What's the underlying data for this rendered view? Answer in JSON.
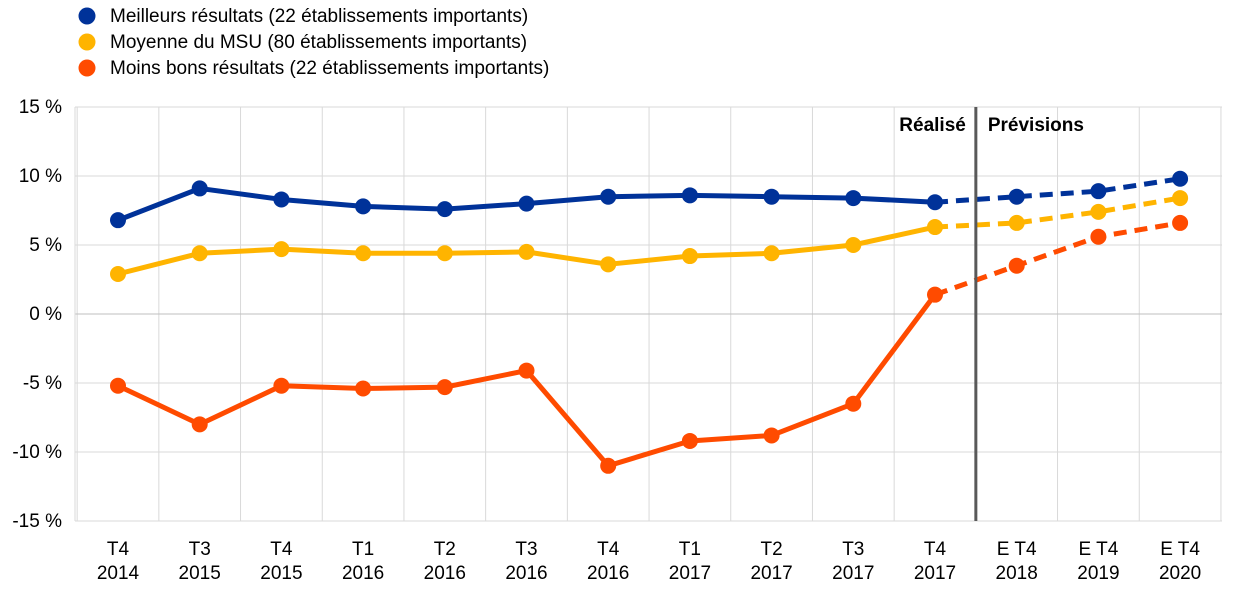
{
  "chart_data": {
    "type": "line",
    "title": "",
    "xlabel": "",
    "ylabel": "",
    "ylim": [
      -15,
      15
    ],
    "yticks": [
      15,
      10,
      5,
      0,
      -5,
      -10,
      -15
    ],
    "ytick_labels": [
      "15 %",
      "10 %",
      "5 %",
      "0 %",
      "-5 %",
      "-10 %",
      "-15 %"
    ],
    "categories": [
      [
        "T4",
        "2014"
      ],
      [
        "T3",
        "2015"
      ],
      [
        "T4",
        "2015"
      ],
      [
        "T1",
        "2016"
      ],
      [
        "T2",
        "2016"
      ],
      [
        "T3",
        "2016"
      ],
      [
        "T4",
        "2016"
      ],
      [
        "T1",
        "2017"
      ],
      [
        "T2",
        "2017"
      ],
      [
        "T3",
        "2017"
      ],
      [
        "T4",
        "2017"
      ],
      [
        "E T4",
        "2018"
      ],
      [
        "E T4",
        "2019"
      ],
      [
        "E T4",
        "2020"
      ]
    ],
    "forecast_start_index": 10,
    "annotations": {
      "realized": "Réalisé",
      "forecast": "Prévisions"
    },
    "grid": true,
    "legend_position": "top-left",
    "series": [
      {
        "name": "Meilleurs résultats (22 établissements importants)",
        "color": "#003299",
        "values": [
          6.8,
          9.1,
          8.3,
          7.8,
          7.6,
          8.0,
          8.5,
          8.6,
          8.5,
          8.4,
          8.1,
          8.5,
          8.9,
          9.8
        ]
      },
      {
        "name": "Moyenne du MSU (80 établissements importants)",
        "color": "#FFB400",
        "values": [
          2.9,
          4.4,
          4.7,
          4.4,
          4.4,
          4.5,
          3.6,
          4.2,
          4.4,
          5.0,
          6.3,
          6.6,
          7.4,
          8.4
        ]
      },
      {
        "name": "Moins bons résultats (22 établissements importants)",
        "color": "#FF4B00",
        "values": [
          -5.2,
          -8.0,
          -5.2,
          -5.4,
          -5.3,
          -4.1,
          -11.0,
          -9.2,
          -8.8,
          -6.5,
          1.4,
          3.5,
          5.6,
          6.6
        ]
      }
    ]
  }
}
